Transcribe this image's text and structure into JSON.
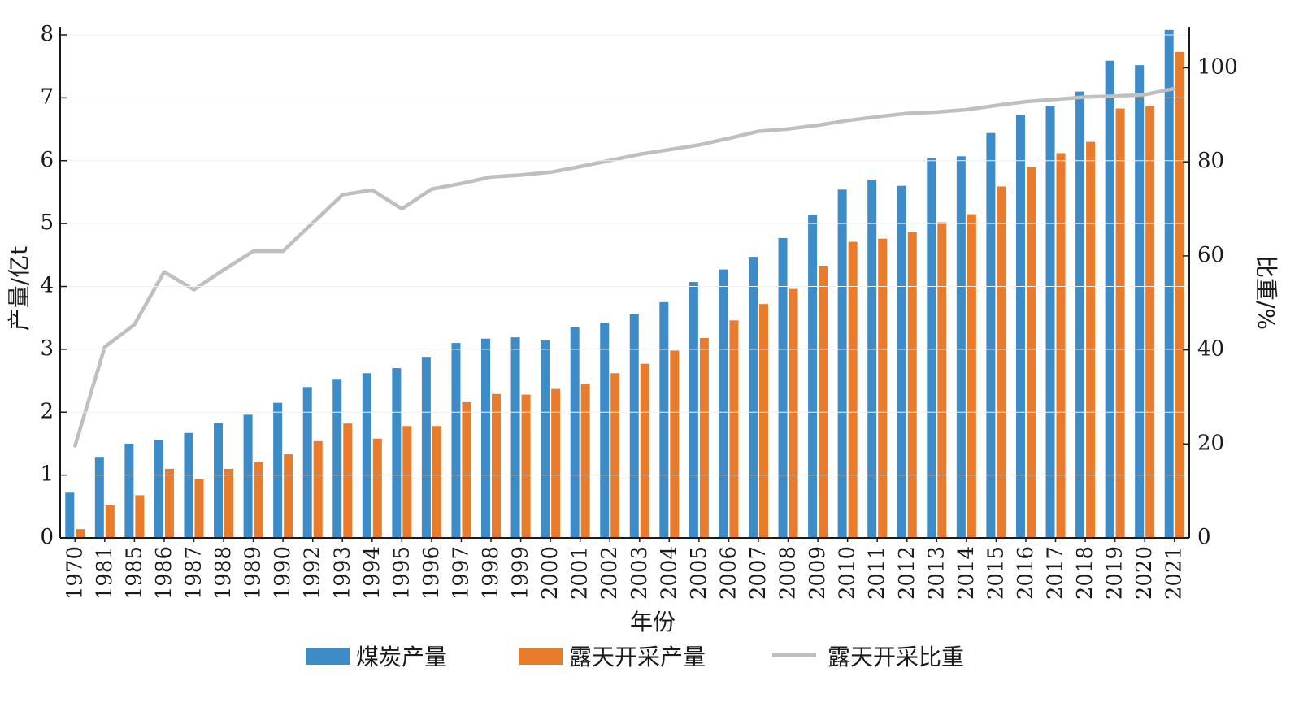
{
  "chart_data": {
    "type": "bar",
    "categories": [
      "1970",
      "1981",
      "1985",
      "1986",
      "1987",
      "1988",
      "1989",
      "1990",
      "1992",
      "1993",
      "1994",
      "1995",
      "1996",
      "1997",
      "1998",
      "1999",
      "2000",
      "2001",
      "2002",
      "2003",
      "2004",
      "2005",
      "2006",
      "2007",
      "2008",
      "2009",
      "2010",
      "2011",
      "2012",
      "2013",
      "2014",
      "2015",
      "2016",
      "2017",
      "2018",
      "2019",
      "2020",
      "2021"
    ],
    "series": [
      {
        "name": "煤炭产量",
        "type": "bar",
        "axis": "left",
        "color": "#3d8cc8",
        "values": [
          0.72,
          1.29,
          1.5,
          1.56,
          1.67,
          1.83,
          1.96,
          2.15,
          2.4,
          2.53,
          2.62,
          2.7,
          2.88,
          3.1,
          3.17,
          3.19,
          3.14,
          3.35,
          3.42,
          3.56,
          3.75,
          4.07,
          4.27,
          4.47,
          4.77,
          5.14,
          5.54,
          5.7,
          5.6,
          6.04,
          6.07,
          6.44,
          6.73,
          6.87,
          7.1,
          7.59,
          7.52,
          8.08
        ]
      },
      {
        "name": "露天开采产量",
        "type": "bar",
        "axis": "left",
        "color": "#e87b2c",
        "values": [
          0.14,
          0.52,
          0.68,
          1.1,
          0.93,
          1.1,
          1.21,
          1.33,
          1.54,
          1.82,
          1.58,
          1.78,
          1.78,
          2.16,
          2.29,
          2.28,
          2.37,
          2.45,
          2.62,
          2.77,
          2.98,
          3.18,
          3.46,
          3.72,
          3.96,
          4.33,
          4.71,
          4.76,
          4.86,
          5.02,
          5.15,
          5.59,
          5.9,
          6.12,
          6.3,
          6.83,
          6.87,
          7.73
        ]
      },
      {
        "name": "露天开采比重",
        "type": "line",
        "axis": "right",
        "color": "#bdbfc1",
        "values": [
          19.6,
          40.6,
          45.4,
          56.6,
          52.8,
          57.0,
          61.0,
          61.0,
          67.0,
          73.0,
          74.0,
          70.0,
          74.2,
          75.4,
          76.8,
          77.2,
          77.8,
          79.0,
          80.3,
          81.6,
          82.6,
          83.6,
          85.0,
          86.5,
          87.0,
          87.8,
          88.8,
          89.6,
          90.3,
          90.6,
          91.1,
          92.0,
          92.8,
          93.3,
          93.8,
          94.0,
          94.3,
          95.6
        ]
      }
    ],
    "xlabel": "年份",
    "ylabel": "产量/亿t",
    "ylim": [
      0,
      8
    ],
    "yticks": [
      "0",
      "1",
      "2",
      "3",
      "4",
      "5",
      "6",
      "7",
      "8"
    ],
    "ylabel_right": "比重/%",
    "ylim_right": [
      0,
      107
    ],
    "yticks_right": [
      "0",
      "20",
      "40",
      "60",
      "80",
      "100"
    ],
    "grid": false,
    "legend_placement": "bottom"
  }
}
